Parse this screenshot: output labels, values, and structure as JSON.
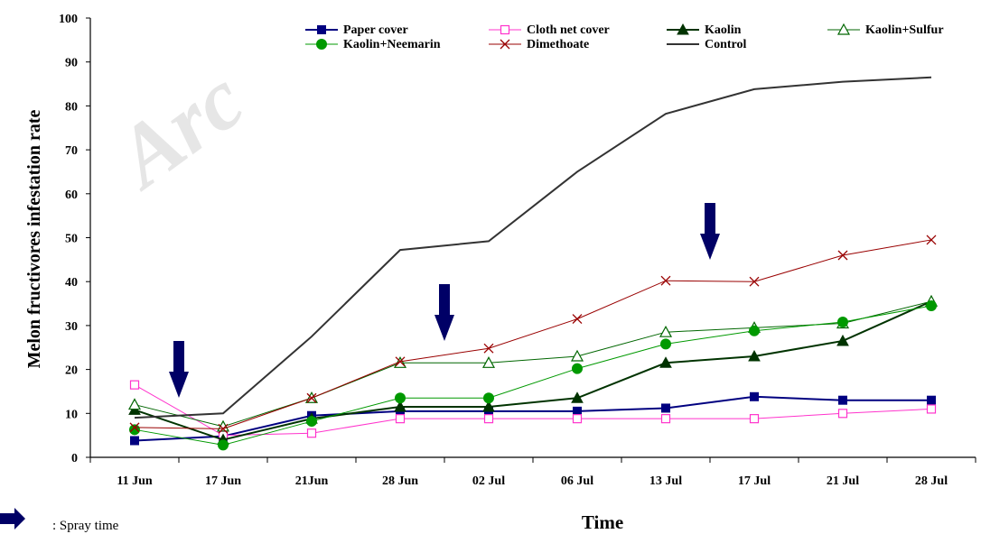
{
  "chart_data": {
    "type": "line",
    "title": "",
    "xlabel": "Time",
    "ylabel": "Melon fructivores infestation rate",
    "ylim": [
      0,
      100
    ],
    "yticks": [
      0,
      10,
      20,
      30,
      40,
      50,
      60,
      70,
      80,
      90,
      100
    ],
    "categories": [
      "11 Jun",
      "17 Jun",
      "21Jun",
      "28 Jun",
      "02 Jul",
      "06 Jul",
      "13 Jul",
      "17 Jul",
      "21 Jul",
      "28 Jul"
    ],
    "x_positions": [
      1,
      2,
      3,
      4,
      5,
      6,
      7,
      8,
      9,
      10
    ],
    "watermark": "Arc",
    "series": [
      {
        "name": "Paper cover",
        "color": "#000080",
        "marker": "square-filled",
        "x": [
          1,
          2,
          3,
          4,
          5,
          6,
          7,
          8,
          9,
          10
        ],
        "values": [
          3.8,
          4.8,
          9.5,
          10.5,
          10.5,
          10.5,
          11.2,
          13.8,
          13.0,
          13.0
        ]
      },
      {
        "name": "Cloth net cover",
        "color": "#ff33cc",
        "marker": "square-open",
        "x": [
          1,
          2,
          3,
          4,
          5,
          6,
          7,
          8,
          9,
          10
        ],
        "values": [
          16.5,
          5.0,
          5.5,
          8.8,
          8.8,
          8.8,
          8.8,
          8.8,
          10.0,
          11.0
        ]
      },
      {
        "name": "Kaolin",
        "color": "#003300",
        "marker": "triangle-filled",
        "x": [
          1,
          2,
          3,
          4,
          5,
          6,
          7,
          8,
          9,
          10
        ],
        "values": [
          10.8,
          4.0,
          8.8,
          11.5,
          11.5,
          13.5,
          21.5,
          23.0,
          26.5,
          35.5
        ]
      },
      {
        "name": "Kaolin+Sulfur",
        "color": "#006600",
        "marker": "triangle-open",
        "x": [
          1,
          2,
          3,
          4,
          5,
          6,
          7,
          8,
          9,
          10
        ],
        "values": [
          12.0,
          7.0,
          13.5,
          21.5,
          21.5,
          23.0,
          28.5,
          29.5,
          30.5,
          35.5
        ]
      },
      {
        "name": "Kaolin+Neemarin",
        "color": "#009900",
        "marker": "circle-filled",
        "x": [
          1,
          2,
          3,
          4,
          5,
          6,
          7,
          8,
          9,
          10
        ],
        "values": [
          6.3,
          2.8,
          8.2,
          13.5,
          13.5,
          20.2,
          25.8,
          28.8,
          30.8,
          34.5
        ]
      },
      {
        "name": "Dimethoate",
        "color": "#990000",
        "marker": "x",
        "x": [
          1,
          2,
          3,
          4,
          5,
          6,
          7,
          8,
          9,
          10
        ],
        "values": [
          6.8,
          6.5,
          13.5,
          21.8,
          24.8,
          31.5,
          40.2,
          40.0,
          46.0,
          49.5
        ]
      },
      {
        "name": "Control",
        "color": "#333333",
        "marker": "none",
        "x": [
          1,
          2,
          3,
          4,
          5,
          6,
          7,
          8,
          9,
          10
        ],
        "values": [
          9.0,
          10.0,
          27.5,
          47.2,
          49.2,
          65.0,
          78.2,
          83.8,
          85.5,
          86.5
        ]
      }
    ],
    "spray_times_x": [
      1.5,
      4.5,
      7.5
    ],
    "spray_arrow_color": "#000066",
    "annotation": ": Spray time",
    "legend_position": "top-right"
  }
}
